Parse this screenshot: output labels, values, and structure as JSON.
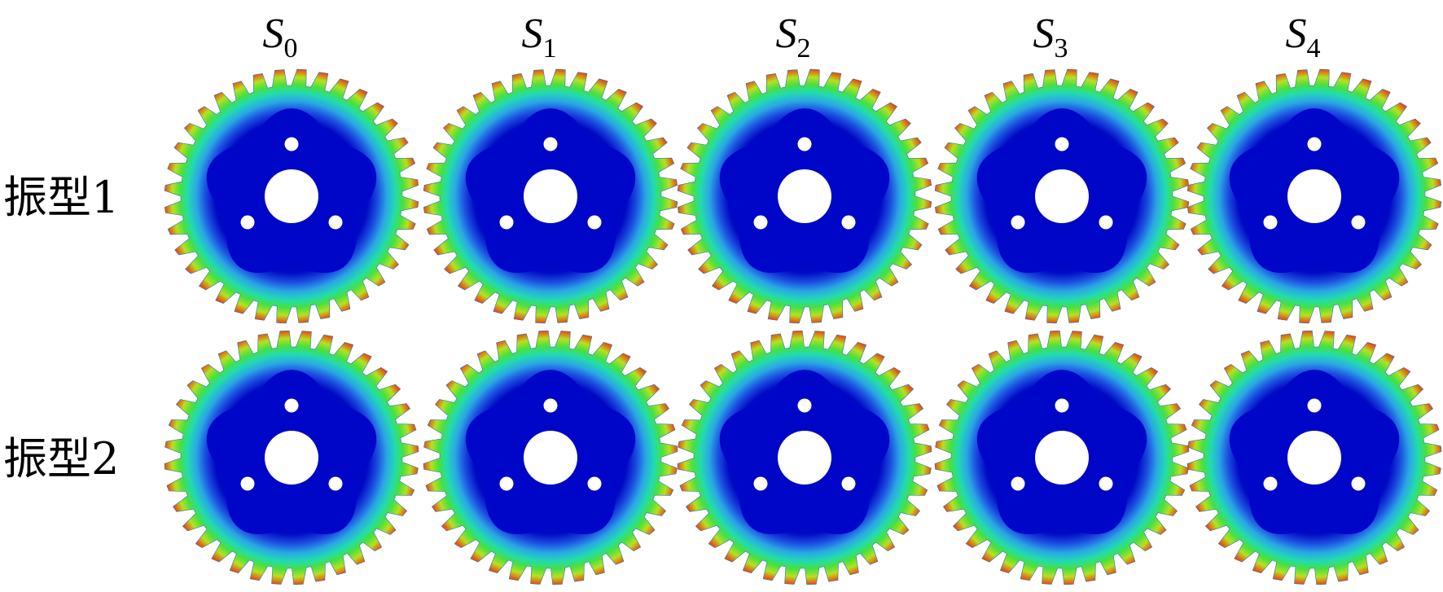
{
  "columns": [
    {
      "symbol": "S",
      "sub": "0"
    },
    {
      "symbol": "S",
      "sub": "1"
    },
    {
      "symbol": "S",
      "sub": "2"
    },
    {
      "symbol": "S",
      "sub": "3"
    },
    {
      "symbol": "S",
      "sub": "4"
    }
  ],
  "rows": [
    "振型1",
    "振型2"
  ]
}
